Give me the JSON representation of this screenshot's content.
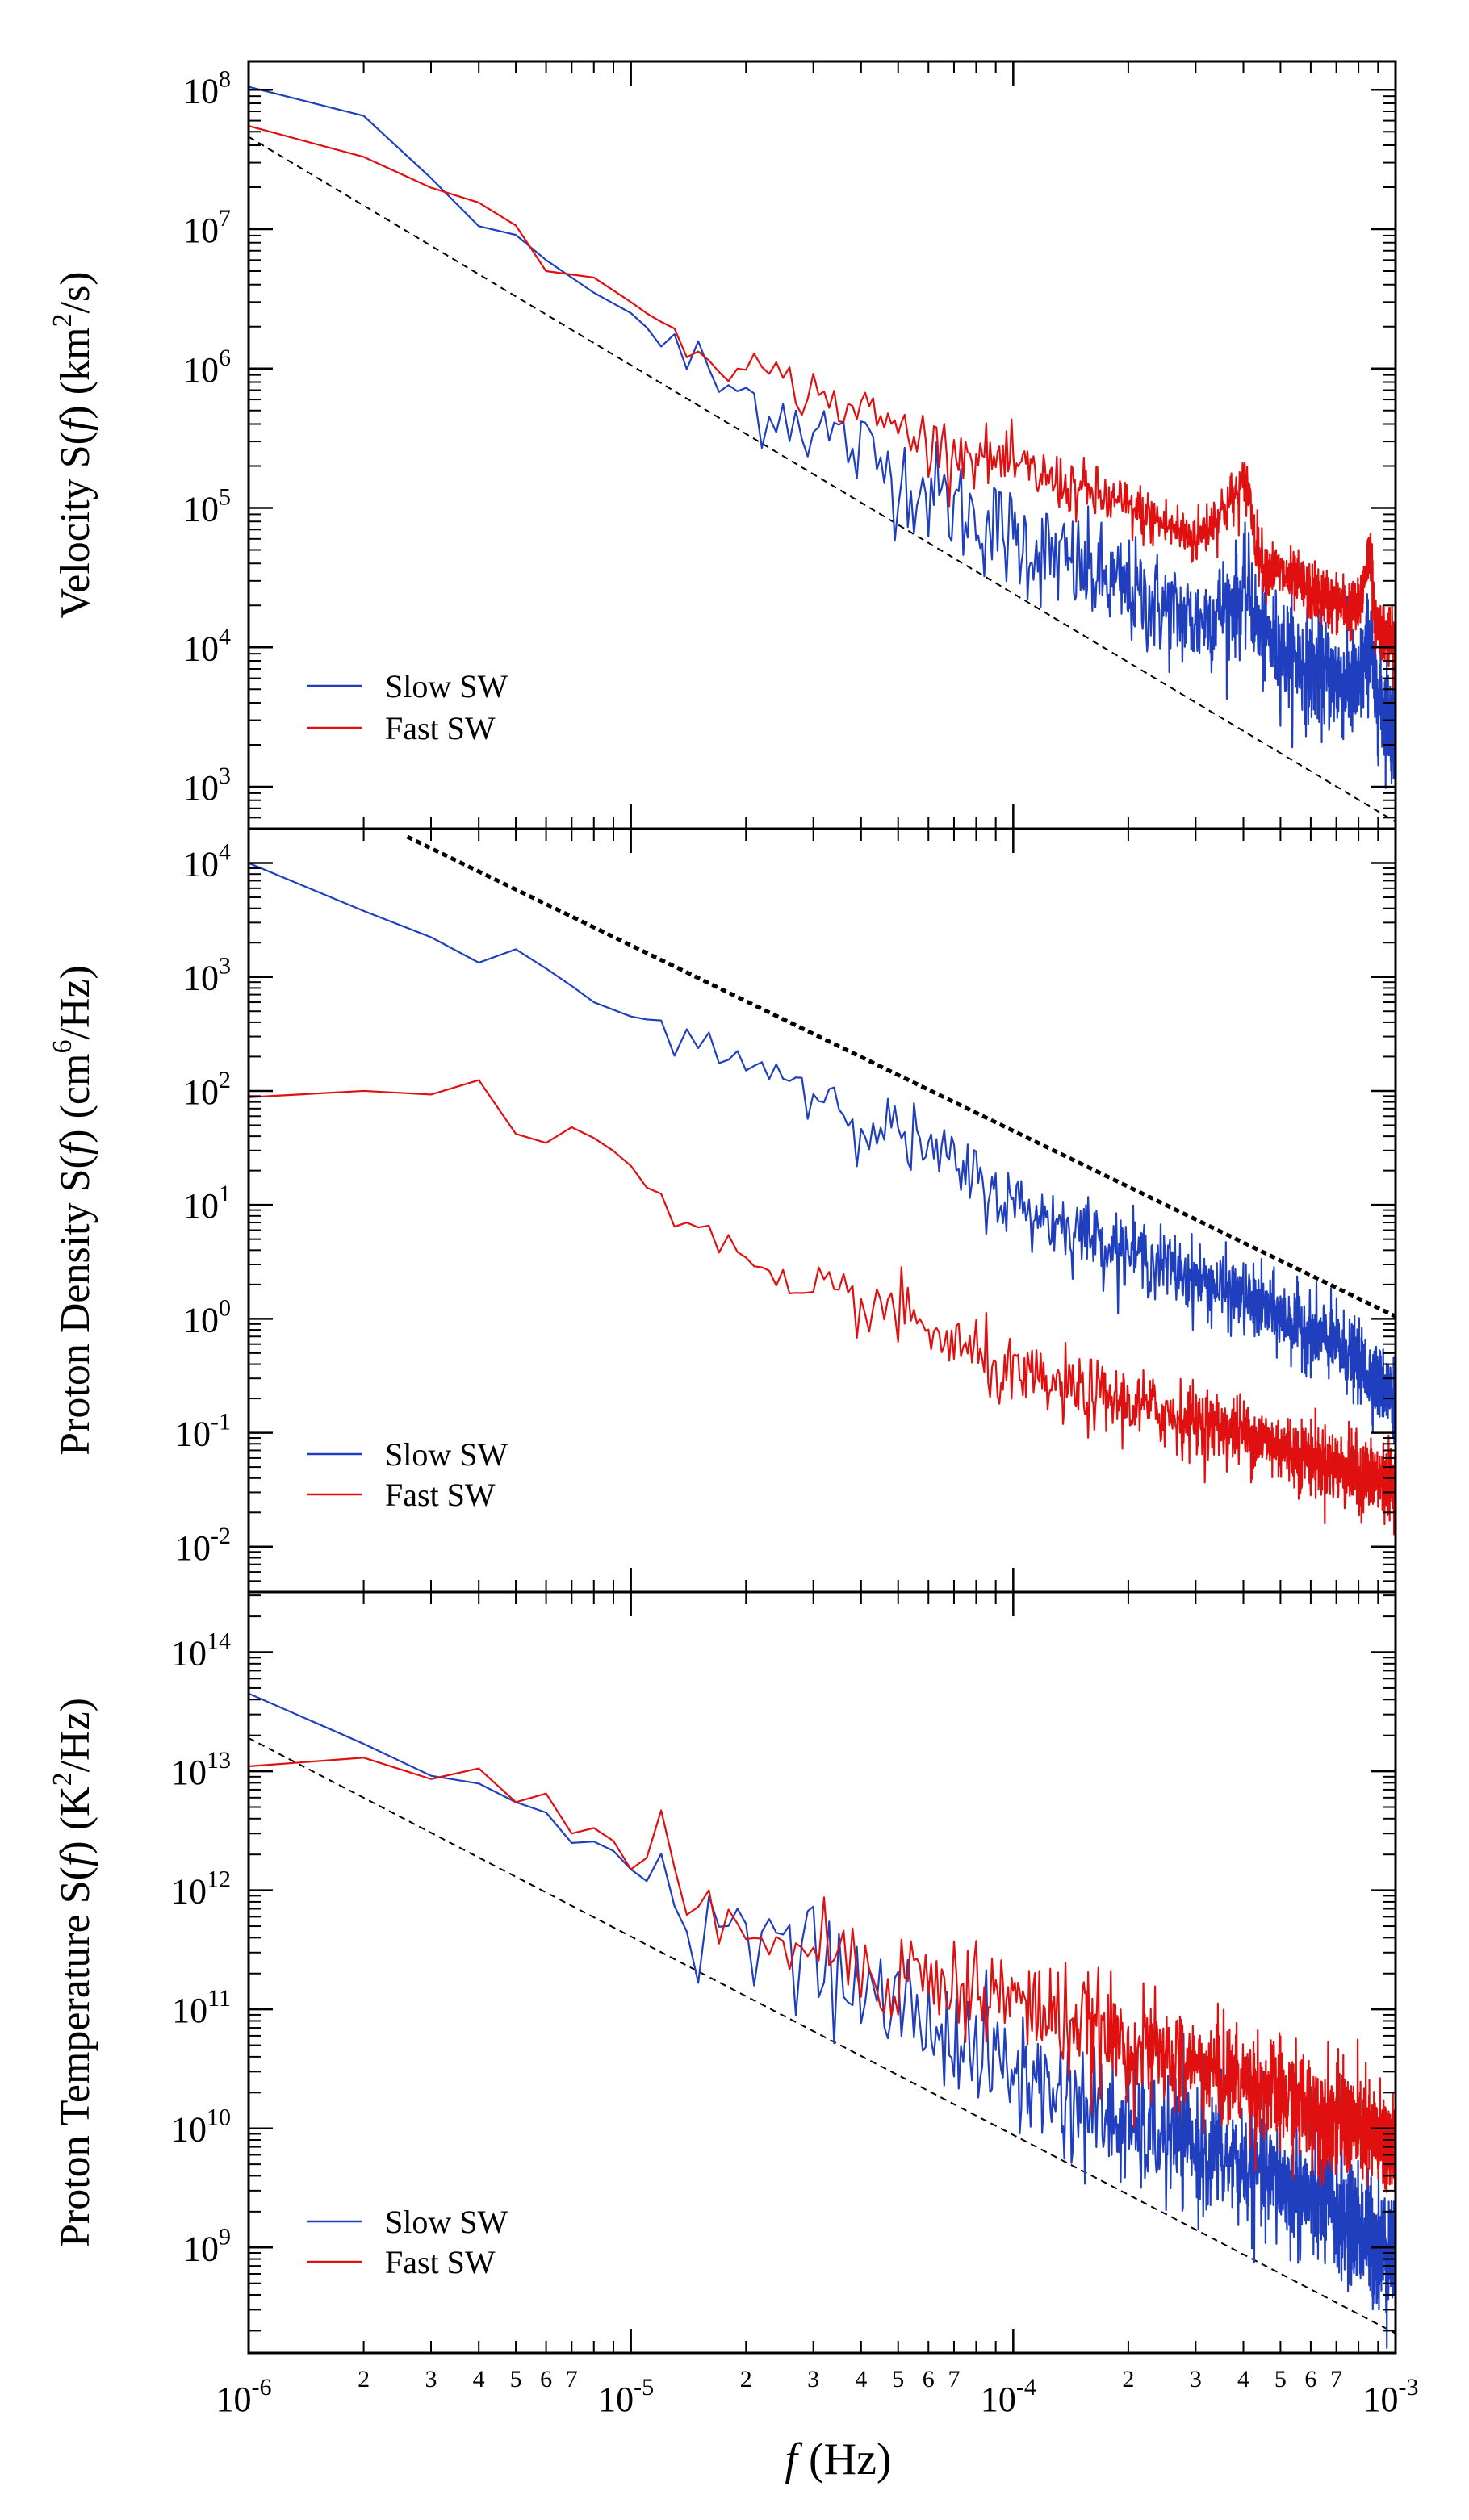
{
  "chart_data": [
    {
      "type": "line",
      "panel": "velocity",
      "ylabel_parts": {
        "pre": "Velocity S(",
        "f": "f",
        "mid": ") (km",
        "sup": "2",
        "post": "/s)"
      },
      "x_scale": "log",
      "xlim": [
        1e-06,
        0.001
      ],
      "y_scale": "log",
      "ylim": [
        500,
        160000000.0
      ],
      "ytick_exponents": [
        "3",
        "4",
        "5",
        "6",
        "7",
        "8"
      ],
      "legend": {
        "placement": "lower-left",
        "entries": [
          "Slow SW",
          "Fast SW"
        ]
      },
      "series": [
        {
          "name": "Slow SW",
          "color": "#1f3fbf",
          "noise": 0.55,
          "x": [
            1e-06,
            1.4e-06,
            2e-06,
            2.7e-06,
            3.5e-06,
            4e-06,
            4.6e-06,
            6e-06,
            8e-06,
            1e-05,
            1.3e-05,
            1.8e-05,
            2.5e-05,
            4e-05,
            6e-05,
            0.0001,
            0.0002,
            0.0003,
            0.00042,
            0.00043,
            0.00045,
            0.0006,
            0.0008,
            0.00086,
            0.00088,
            0.001
          ],
          "y": [
            105000000.0,
            80000000.0,
            65000000.0,
            30000000.0,
            16000000.0,
            10500000.0,
            11000000.0,
            6000000.0,
            3500000.0,
            2500000.0,
            1300000.0,
            700000.0,
            500000.0,
            250000.0,
            130000.0,
            60000.0,
            25000.0,
            15000.0,
            25000.0,
            15000.0,
            12000.0,
            7000.0,
            5000.0,
            12000.0,
            5000.0,
            2500.0
          ]
        },
        {
          "name": "Fast SW",
          "color": "#e01010",
          "noise": 0.3,
          "x": [
            1e-06,
            1.4e-06,
            2e-06,
            2.7e-06,
            3.5e-06,
            4.6e-06,
            6e-06,
            8e-06,
            1e-05,
            1.3e-05,
            1.8e-05,
            2.5e-05,
            4e-05,
            6e-05,
            0.0001,
            0.0002,
            0.0003,
            0.00041,
            0.00043,
            0.00045,
            0.0006,
            0.0008,
            0.00086,
            0.00088,
            0.001
          ],
          "y": [
            55000000.0,
            40000000.0,
            33000000.0,
            23000000.0,
            16000000.0,
            15000000.0,
            5000000.0,
            4500000.0,
            3000000.0,
            1800000.0,
            1200000.0,
            800000.0,
            500000.0,
            300000.0,
            200000.0,
            100000.0,
            60000.0,
            150000.0,
            60000.0,
            40000.0,
            25000.0,
            18000.0,
            55000.0,
            16000.0,
            10000.0
          ]
        }
      ],
      "reference_line": {
        "style": "dashed",
        "x": [
          1e-06,
          0.001
        ],
        "y": [
          46000000.0,
          560
        ]
      }
    },
    {
      "type": "line",
      "panel": "density",
      "ylabel_parts": {
        "pre": "Proton Density S(",
        "f": "f",
        "mid": ") (cm",
        "sup": "6",
        "post": "/Hz)"
      },
      "x_scale": "log",
      "xlim": [
        1e-06,
        0.001
      ],
      "y_scale": "log",
      "ylim": [
        0.004,
        20000.0
      ],
      "ytick_exponents": [
        "-2",
        "-1",
        "0",
        "1",
        "2",
        "3",
        "4"
      ],
      "ytick_mantissa": "10",
      "legend": {
        "placement": "lower-left",
        "entries": [
          "Slow SW",
          "Fast SW"
        ]
      },
      "series": [
        {
          "name": "Slow SW",
          "color": "#1f3fbf",
          "noise": 0.45,
          "x": [
            1e-06,
            1.4e-06,
            2e-06,
            2.7e-06,
            3.5e-06,
            4.2e-06,
            5e-06,
            6.5e-06,
            8e-06,
            1e-05,
            1.3e-05,
            1.8e-05,
            2.5e-05,
            3e-05,
            4e-05,
            6e-05,
            0.0001,
            0.0002,
            0.0004,
            0.0007,
            0.001
          ],
          "y": [
            10000.0,
            11000.0,
            3800.0,
            2800.0,
            1600.0,
            1250.0,
            1750.0,
            1000.0,
            600,
            450,
            380,
            200,
            150,
            100,
            60,
            30,
            10,
            4,
            1.5,
            0.6,
            0.2
          ]
        },
        {
          "name": "Fast SW",
          "color": "#e01010",
          "noise": 0.45,
          "x": [
            1e-06,
            1.4e-06,
            2e-06,
            2.7e-06,
            3.5e-06,
            4.2e-06,
            5e-06,
            6e-06,
            7e-06,
            8.5e-06,
            1e-05,
            1.2e-05,
            1.5e-05,
            2e-05,
            2.6e-05,
            3e-05,
            4e-05,
            6e-05,
            0.0001,
            0.0002,
            0.0004,
            0.0007,
            0.001
          ],
          "y": [
            88,
            52,
            100,
            95,
            90,
            140,
            42,
            35,
            48,
            35,
            22,
            9.5,
            5,
            3.5,
            1.2,
            1.5,
            1.5,
            0.8,
            0.3,
            0.18,
            0.1,
            0.05,
            0.035
          ]
        }
      ],
      "reference_line": {
        "style": "dotted",
        "x": [
          2.6e-06,
          0.001
        ],
        "y": [
          17000.0,
          1.05
        ]
      }
    },
    {
      "type": "line",
      "panel": "temperature",
      "ylabel_parts": {
        "pre": "Proton Temperature S(",
        "f": "f",
        "mid": ") (K",
        "sup": "2",
        "post": "/Hz)"
      },
      "x_scale": "log",
      "xlim": [
        1e-06,
        0.001
      ],
      "y_scale": "log",
      "ylim": [
        130000000.0,
        320000000000000.0
      ],
      "ytick_exponents": [
        "9",
        "10",
        "11",
        "12",
        "13",
        "14"
      ],
      "xlabel_parts": {
        "f": "f",
        "post": " (Hz)"
      },
      "xtick_exponents": [
        "-6",
        "-5",
        "-4",
        "-3"
      ],
      "xtick_minor_labels": [
        "2",
        "3",
        "4",
        "5",
        "6",
        "7"
      ],
      "legend": {
        "placement": "lower-left",
        "entries": [
          "Slow SW",
          "Fast SW"
        ]
      },
      "series": [
        {
          "name": "Slow SW",
          "color": "#1f3fbf",
          "noise": 0.75,
          "x": [
            1e-06,
            1.4e-06,
            2e-06,
            2.7e-06,
            3.5e-06,
            4.2e-06,
            5e-06,
            6e-06,
            7e-06,
            8.5e-06,
            1e-05,
            1.3e-05,
            1.8e-05,
            2.6e-05,
            4e-05,
            6e-05,
            0.0001,
            0.0002,
            0.0004,
            0.0007,
            0.001
          ],
          "y": [
            45000000000000.0,
            35000000000000.0,
            17000000000000.0,
            13000000000000.0,
            5500000000000.0,
            9000000000000.0,
            5500000000000.0,
            4500000000000.0,
            2500000000000.0,
            2600000000000.0,
            1500000000000.0,
            800000000000.0,
            500000000000.0,
            300000000000.0,
            150000000000.0,
            80000000000.0,
            30000000000.0,
            10000000000.0,
            5000000000.0,
            2000000000.0,
            800000000.0
          ]
        },
        {
          "name": "Fast SW",
          "color": "#e01010",
          "noise": 0.65,
          "x": [
            1e-06,
            1.4e-06,
            2e-06,
            2.7e-06,
            3.5e-06,
            4.2e-06,
            5e-06,
            6e-06,
            7e-06,
            8.5e-06,
            1e-05,
            1.2e-05,
            1.3e-05,
            1.6e-05,
            2e-05,
            2.6e-05,
            4e-05,
            6e-05,
            0.0001,
            0.0002,
            0.0004,
            0.0007,
            0.001
          ],
          "y": [
            11000000000000.0,
            9000000000000.0,
            13000000000000.0,
            11000000000000.0,
            6000000000000.0,
            13000000000000.0,
            5500000000000.0,
            6500000000000.0,
            3000000000000.0,
            3500000000000.0,
            1500000000000.0,
            2300000000000.0,
            1200000000000.0,
            800000000000.0,
            700000000000.0,
            400000000000.0,
            250000000000.0,
            180000000000.0,
            120000000000.0,
            50000000000.0,
            25000000000.0,
            12000000000.0,
            7000000000.0
          ]
        }
      ],
      "reference_line": {
        "style": "dashed",
        "x": [
          1e-06,
          0.001
        ],
        "y": [
          19000000000000.0,
          190000000.0
        ]
      }
    }
  ],
  "axis_mantissa": "10"
}
